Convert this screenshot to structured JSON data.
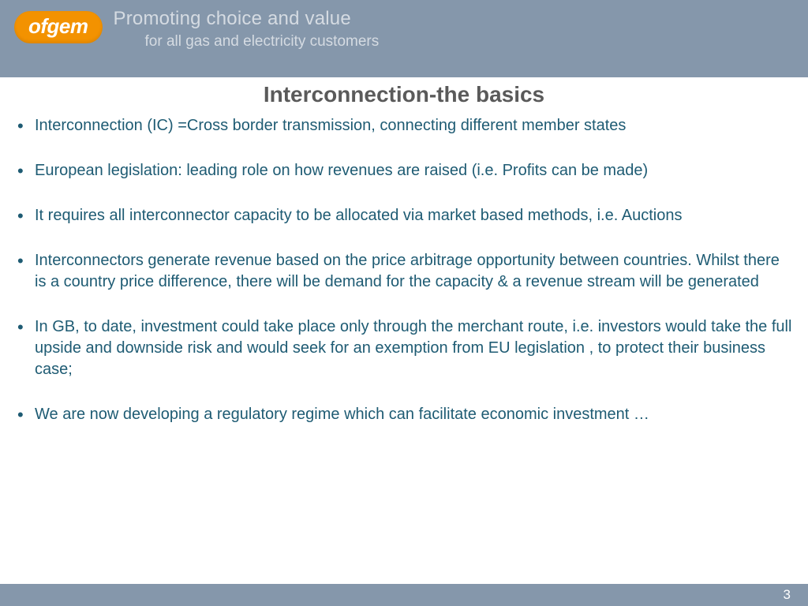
{
  "header": {
    "logo_text": "ofgem",
    "tagline_line1": "Promoting choice and value",
    "tagline_line2": "for all gas and electricity customers",
    "band_color": "#8597ab",
    "logo_bg_color": "#f39200",
    "logo_text_color": "#ffffff",
    "tagline_color": "#d5dbe2"
  },
  "title": {
    "text": "Interconnection-the basics",
    "color": "#5a5a5a",
    "fontsize": 28,
    "weight": "bold"
  },
  "bullets": {
    "text_color": "#1e5b73",
    "fontsize": 20,
    "items": [
      "Interconnection (IC) =Cross border transmission, connecting different member states",
      "European legislation: leading role on how revenues are raised (i.e. Profits can be made)",
      "It requires all interconnector capacity to be allocated via market based methods, i.e. Auctions",
      "Interconnectors generate revenue based on the price arbitrage opportunity between countries. Whilst there is a country price difference, there will be demand for the capacity & a revenue stream will be generated",
      "In GB, to date, investment could take place only through the merchant route, i.e. investors would take the full upside and downside risk and would seek for an exemption from EU legislation , to protect their business case;",
      "We are now developing a regulatory regime which can facilitate economic investment …"
    ]
  },
  "footer": {
    "page_number": "3",
    "band_color": "#8597ab",
    "text_color": "#ffffff"
  },
  "background_color": "#ffffff"
}
